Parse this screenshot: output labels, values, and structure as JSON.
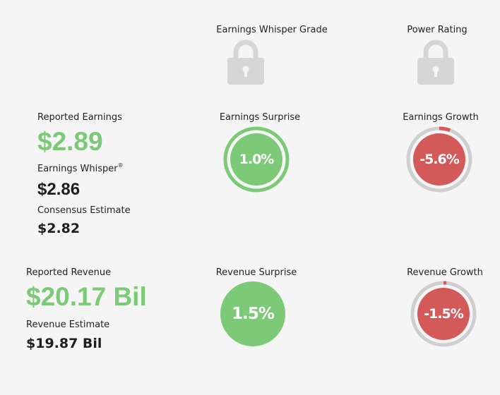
{
  "grades": {
    "whisper_grade_label": "Earnings Whisper Grade",
    "power_rating_label": "Power Rating",
    "lock_icon": "lock-icon"
  },
  "earnings": {
    "reported_label": "Reported Earnings",
    "reported_value": "$2.89",
    "whisper_label": "Earnings Whisper",
    "whisper_mark": "®",
    "whisper_value": "$2.86",
    "consensus_label": "Consensus Estimate",
    "consensus_value": "$2.82",
    "surprise_label": "Earnings Surprise",
    "surprise_value": "1.0%",
    "surprise_fraction": 1.0,
    "growth_label": "Earnings Growth",
    "growth_value": "-5.6%",
    "growth_fraction": 0.056
  },
  "revenue": {
    "reported_label": "Reported Revenue",
    "reported_value": "$20.17 Bil",
    "estimate_label": "Revenue Estimate",
    "estimate_value": "$19.87 Bil",
    "surprise_label": "Revenue Surprise",
    "surprise_value": "1.5%",
    "growth_label": "Revenue Growth",
    "growth_value": "-1.5%",
    "growth_fraction": 0.015
  },
  "colors": {
    "positive": "#7cca77",
    "negative": "#d45a5a",
    "track": "#cfcfcf",
    "lock": "#d6d6d6"
  }
}
